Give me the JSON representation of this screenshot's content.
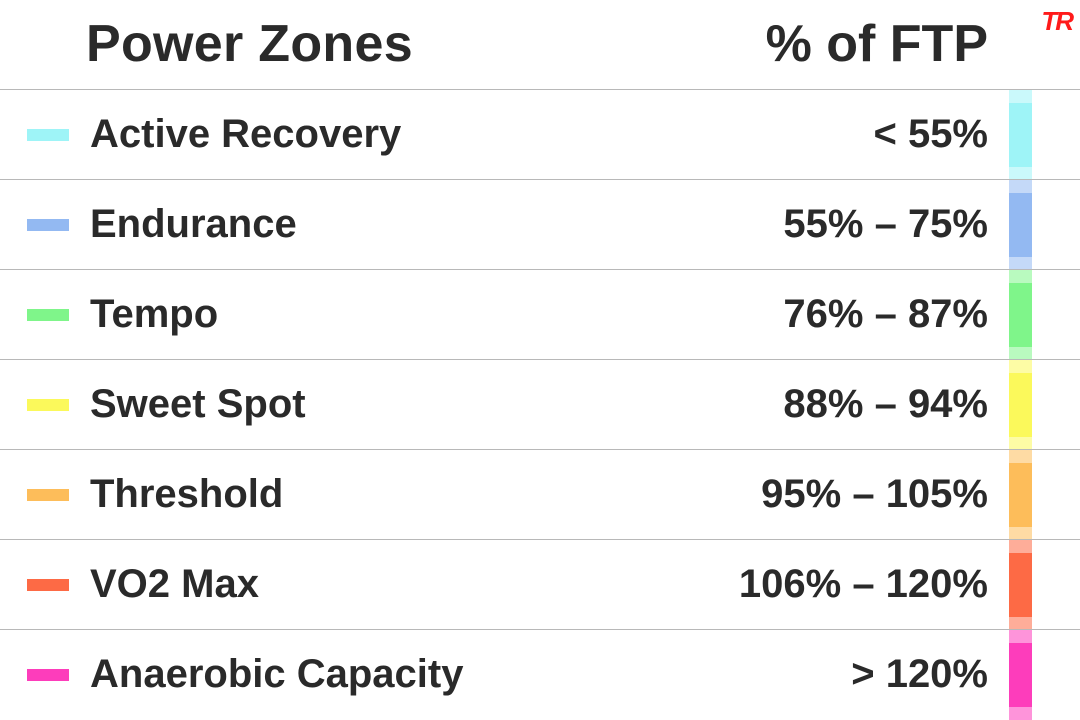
{
  "header": {
    "title": "Power Zones",
    "column_title": "% of FTP",
    "logo_text": "TR",
    "logo_color": "#ff1a1a"
  },
  "zones": [
    {
      "name": "Active Recovery",
      "range": "< 55%",
      "color": "#9ef4f7"
    },
    {
      "name": "Endurance",
      "range": "55% – 75%",
      "color": "#93b9f2"
    },
    {
      "name": "Tempo",
      "range": "76% – 87%",
      "color": "#7ff58a"
    },
    {
      "name": "Sweet Spot",
      "range": "88% – 94%",
      "color": "#fbf95b"
    },
    {
      "name": "Threshold",
      "range": "95% – 105%",
      "color": "#fdbd5a"
    },
    {
      "name": "VO2 Max",
      "range": "106% – 120%",
      "color": "#fd6a45"
    },
    {
      "name": "Anaerobic Capacity",
      "range": "> 120%",
      "color": "#fd3dbb"
    }
  ]
}
